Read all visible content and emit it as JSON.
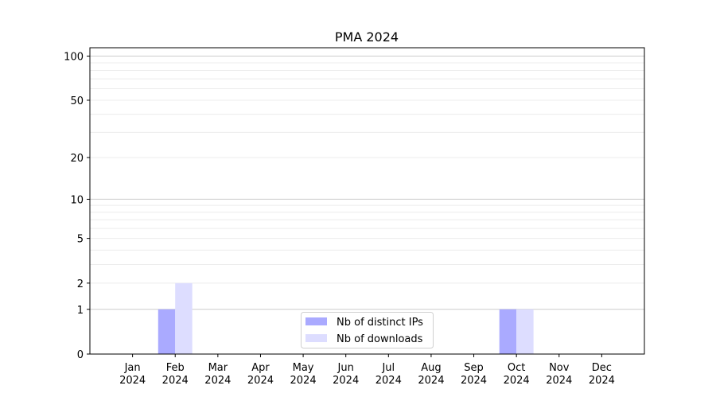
{
  "chart_data": {
    "type": "bar",
    "title": "PMA 2024",
    "xlabel": "",
    "ylabel": "",
    "yscale": "symlog (log10(1+y))",
    "ylim": [
      0,
      114
    ],
    "yticks": [
      0,
      1,
      2,
      5,
      10,
      20,
      50,
      100
    ],
    "grid": true,
    "legend_position": "lower center",
    "categories": [
      "Jan\n2024",
      "Feb\n2024",
      "Mar\n2024",
      "Apr\n2024",
      "May\n2024",
      "Jun\n2024",
      "Jul\n2024",
      "Aug\n2024",
      "Sep\n2024",
      "Oct\n2024",
      "Nov\n2024",
      "Dec\n2024"
    ],
    "series": [
      {
        "name": "Nb of distinct IPs",
        "color": "#aaaaff",
        "values": [
          0,
          1,
          0,
          0,
          0,
          0,
          0,
          0,
          0,
          1,
          0,
          0
        ]
      },
      {
        "name": "Nb of downloads",
        "color": "#ddddff",
        "values": [
          0,
          2,
          0,
          0,
          0,
          0,
          0,
          0,
          0,
          1,
          0,
          0
        ]
      }
    ]
  }
}
